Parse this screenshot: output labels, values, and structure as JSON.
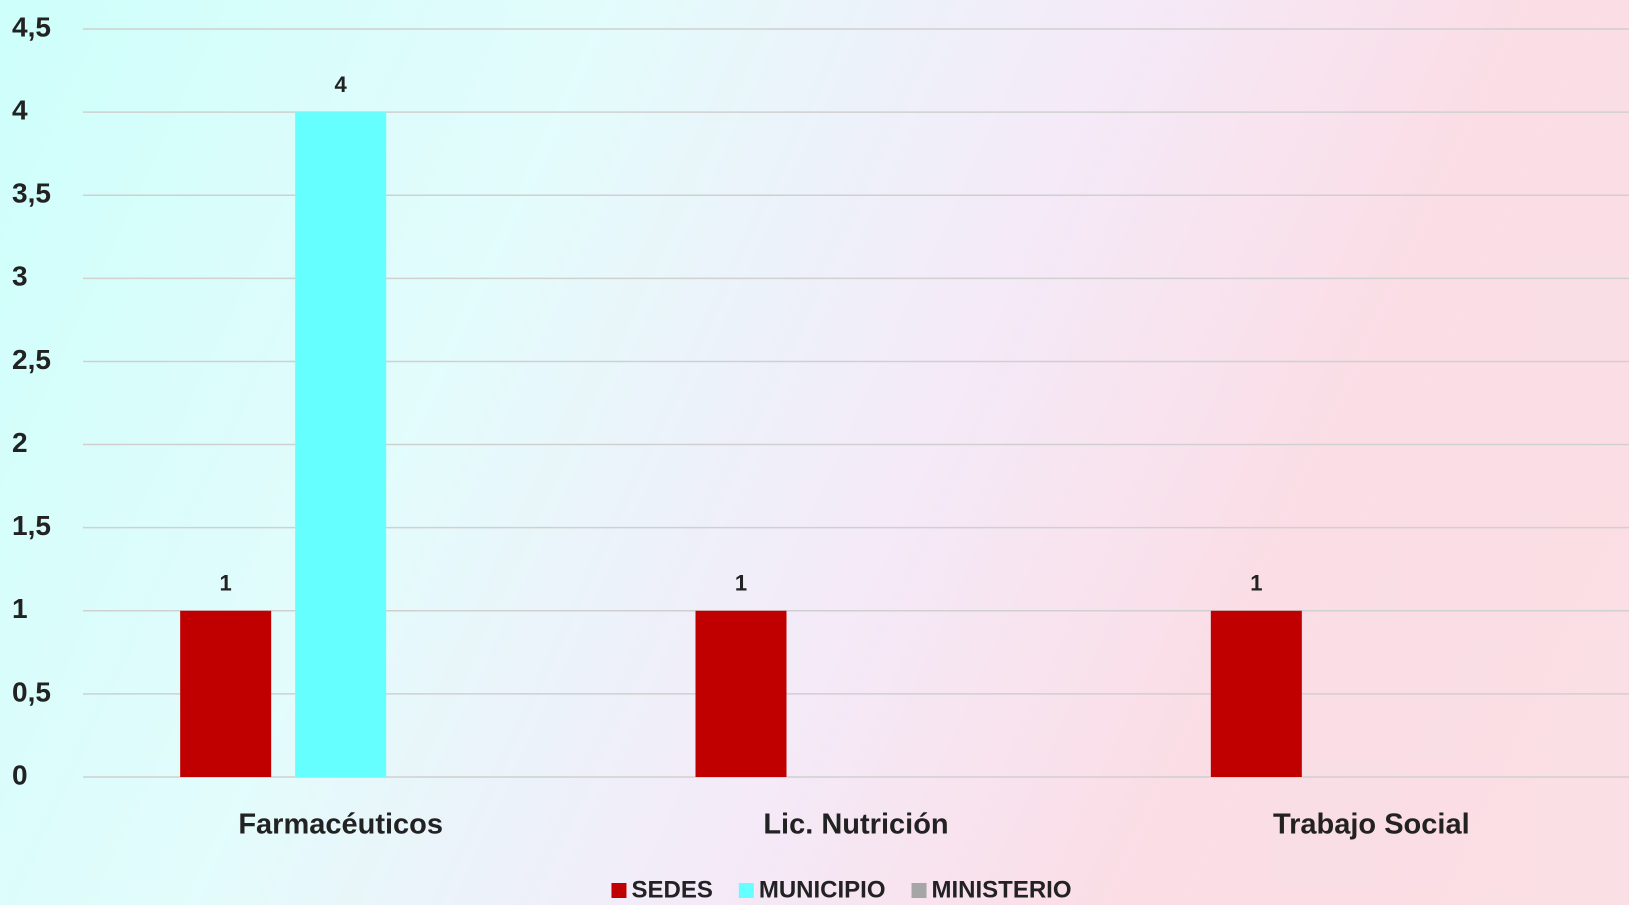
{
  "chart_data": {
    "type": "bar",
    "categories": [
      "Farmacéuticos",
      "Lic. Nutrición",
      "Trabajo Social"
    ],
    "series": [
      {
        "name": "SEDES",
        "color": "#c00000",
        "values": [
          1,
          1,
          1
        ]
      },
      {
        "name": "MUNICIPIO",
        "color": "#66ffff",
        "values": [
          4,
          null,
          null
        ]
      },
      {
        "name": "MINISTERIO",
        "color": "#a6a6a6",
        "values": [
          null,
          null,
          null
        ]
      }
    ],
    "ylim": [
      0,
      4.5
    ],
    "yticks": [
      0,
      {
        "value": 0.5,
        "label": "0,5"
      },
      1,
      {
        "value": 1.5,
        "label": "1,5"
      },
      2,
      {
        "value": 2.5,
        "label": "2,5"
      },
      3,
      {
        "value": 3.5,
        "label": "3,5"
      },
      4,
      {
        "value": 4.5,
        "label": "4,5"
      }
    ],
    "grid": true,
    "legend": "bottom"
  }
}
